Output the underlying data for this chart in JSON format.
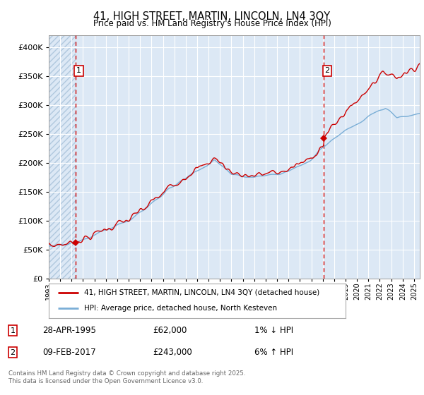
{
  "title": "41, HIGH STREET, MARTIN, LINCOLN, LN4 3QY",
  "subtitle": "Price paid vs. HM Land Registry's House Price Index (HPI)",
  "ytick_values": [
    0,
    50000,
    100000,
    150000,
    200000,
    250000,
    300000,
    350000,
    400000
  ],
  "ylim": [
    0,
    420000
  ],
  "xlim_start": 1993.0,
  "xlim_end": 2025.5,
  "vline1_x": 1995.33,
  "vline2_x": 2017.1,
  "marker1_x": 1995.33,
  "marker1_y": 62000,
  "marker2_x": 2017.1,
  "marker2_y": 243000,
  "line_color_red": "#cc0000",
  "line_color_blue": "#7aaed6",
  "vline_color": "#cc0000",
  "marker_color": "#cc0000",
  "plot_bg_color": "#dce8f5",
  "legend_label_red": "41, HIGH STREET, MARTIN, LINCOLN, LN4 3QY (detached house)",
  "legend_label_blue": "HPI: Average price, detached house, North Kesteven",
  "note1_label": "1",
  "note1_date": "28-APR-1995",
  "note1_price": "£62,000",
  "note1_pct": "1% ↓ HPI",
  "note2_label": "2",
  "note2_date": "09-FEB-2017",
  "note2_price": "£243,000",
  "note2_pct": "6% ↑ HPI",
  "footer": "Contains HM Land Registry data © Crown copyright and database right 2025.\nThis data is licensed under the Open Government Licence v3.0.",
  "xtick_years": [
    1993,
    1994,
    1995,
    1996,
    1997,
    1998,
    1999,
    2000,
    2001,
    2002,
    2003,
    2004,
    2005,
    2006,
    2007,
    2008,
    2009,
    2010,
    2011,
    2012,
    2013,
    2014,
    2015,
    2016,
    2017,
    2018,
    2019,
    2020,
    2021,
    2022,
    2023,
    2024,
    2025
  ]
}
